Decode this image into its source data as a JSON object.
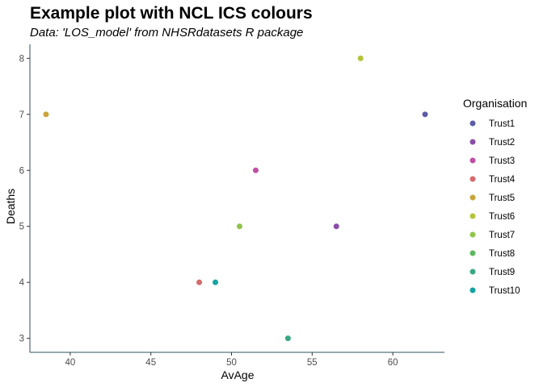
{
  "chart_data": {
    "type": "scatter",
    "title": "Example plot with NCL ICS colours",
    "subtitle": "Data: 'LOS_model' from NHSRdatasets R package",
    "xlabel": "AvAge",
    "ylabel": "Deaths",
    "xlim": [
      37.5,
      63.2
    ],
    "ylim": [
      2.75,
      8.25
    ],
    "x_ticks": [
      40,
      45,
      50,
      55,
      60
    ],
    "y_ticks": [
      3,
      4,
      5,
      6,
      7,
      8
    ],
    "grid": false,
    "legend": {
      "title": "Organisation",
      "position": "right"
    },
    "series": [
      {
        "name": "Trust1",
        "color": "#5c5ca8",
        "points": [
          [
            62.0,
            7
          ]
        ]
      },
      {
        "name": "Trust2",
        "color": "#8a4fa8",
        "points": [
          [
            56.5,
            5
          ]
        ]
      },
      {
        "name": "Trust3",
        "color": "#c04fa3",
        "points": [
          [
            51.5,
            6
          ]
        ]
      },
      {
        "name": "Trust4",
        "color": "#d66a6a",
        "points": [
          [
            48.0,
            4
          ]
        ]
      },
      {
        "name": "Trust5",
        "color": "#c9a43a",
        "points": [
          [
            38.5,
            7
          ]
        ]
      },
      {
        "name": "Trust6",
        "color": "#b5c43a",
        "points": [
          [
            58.0,
            8
          ]
        ]
      },
      {
        "name": "Trust7",
        "color": "#8fc44a",
        "points": [
          [
            50.5,
            5
          ]
        ]
      },
      {
        "name": "Trust8",
        "color": "#5fb85f",
        "points": []
      },
      {
        "name": "Trust9",
        "color": "#3aa883",
        "points": [
          [
            53.5,
            3
          ]
        ]
      },
      {
        "name": "Trust10",
        "color": "#14a3a3",
        "points": [
          [
            49.0,
            4
          ]
        ]
      }
    ]
  }
}
